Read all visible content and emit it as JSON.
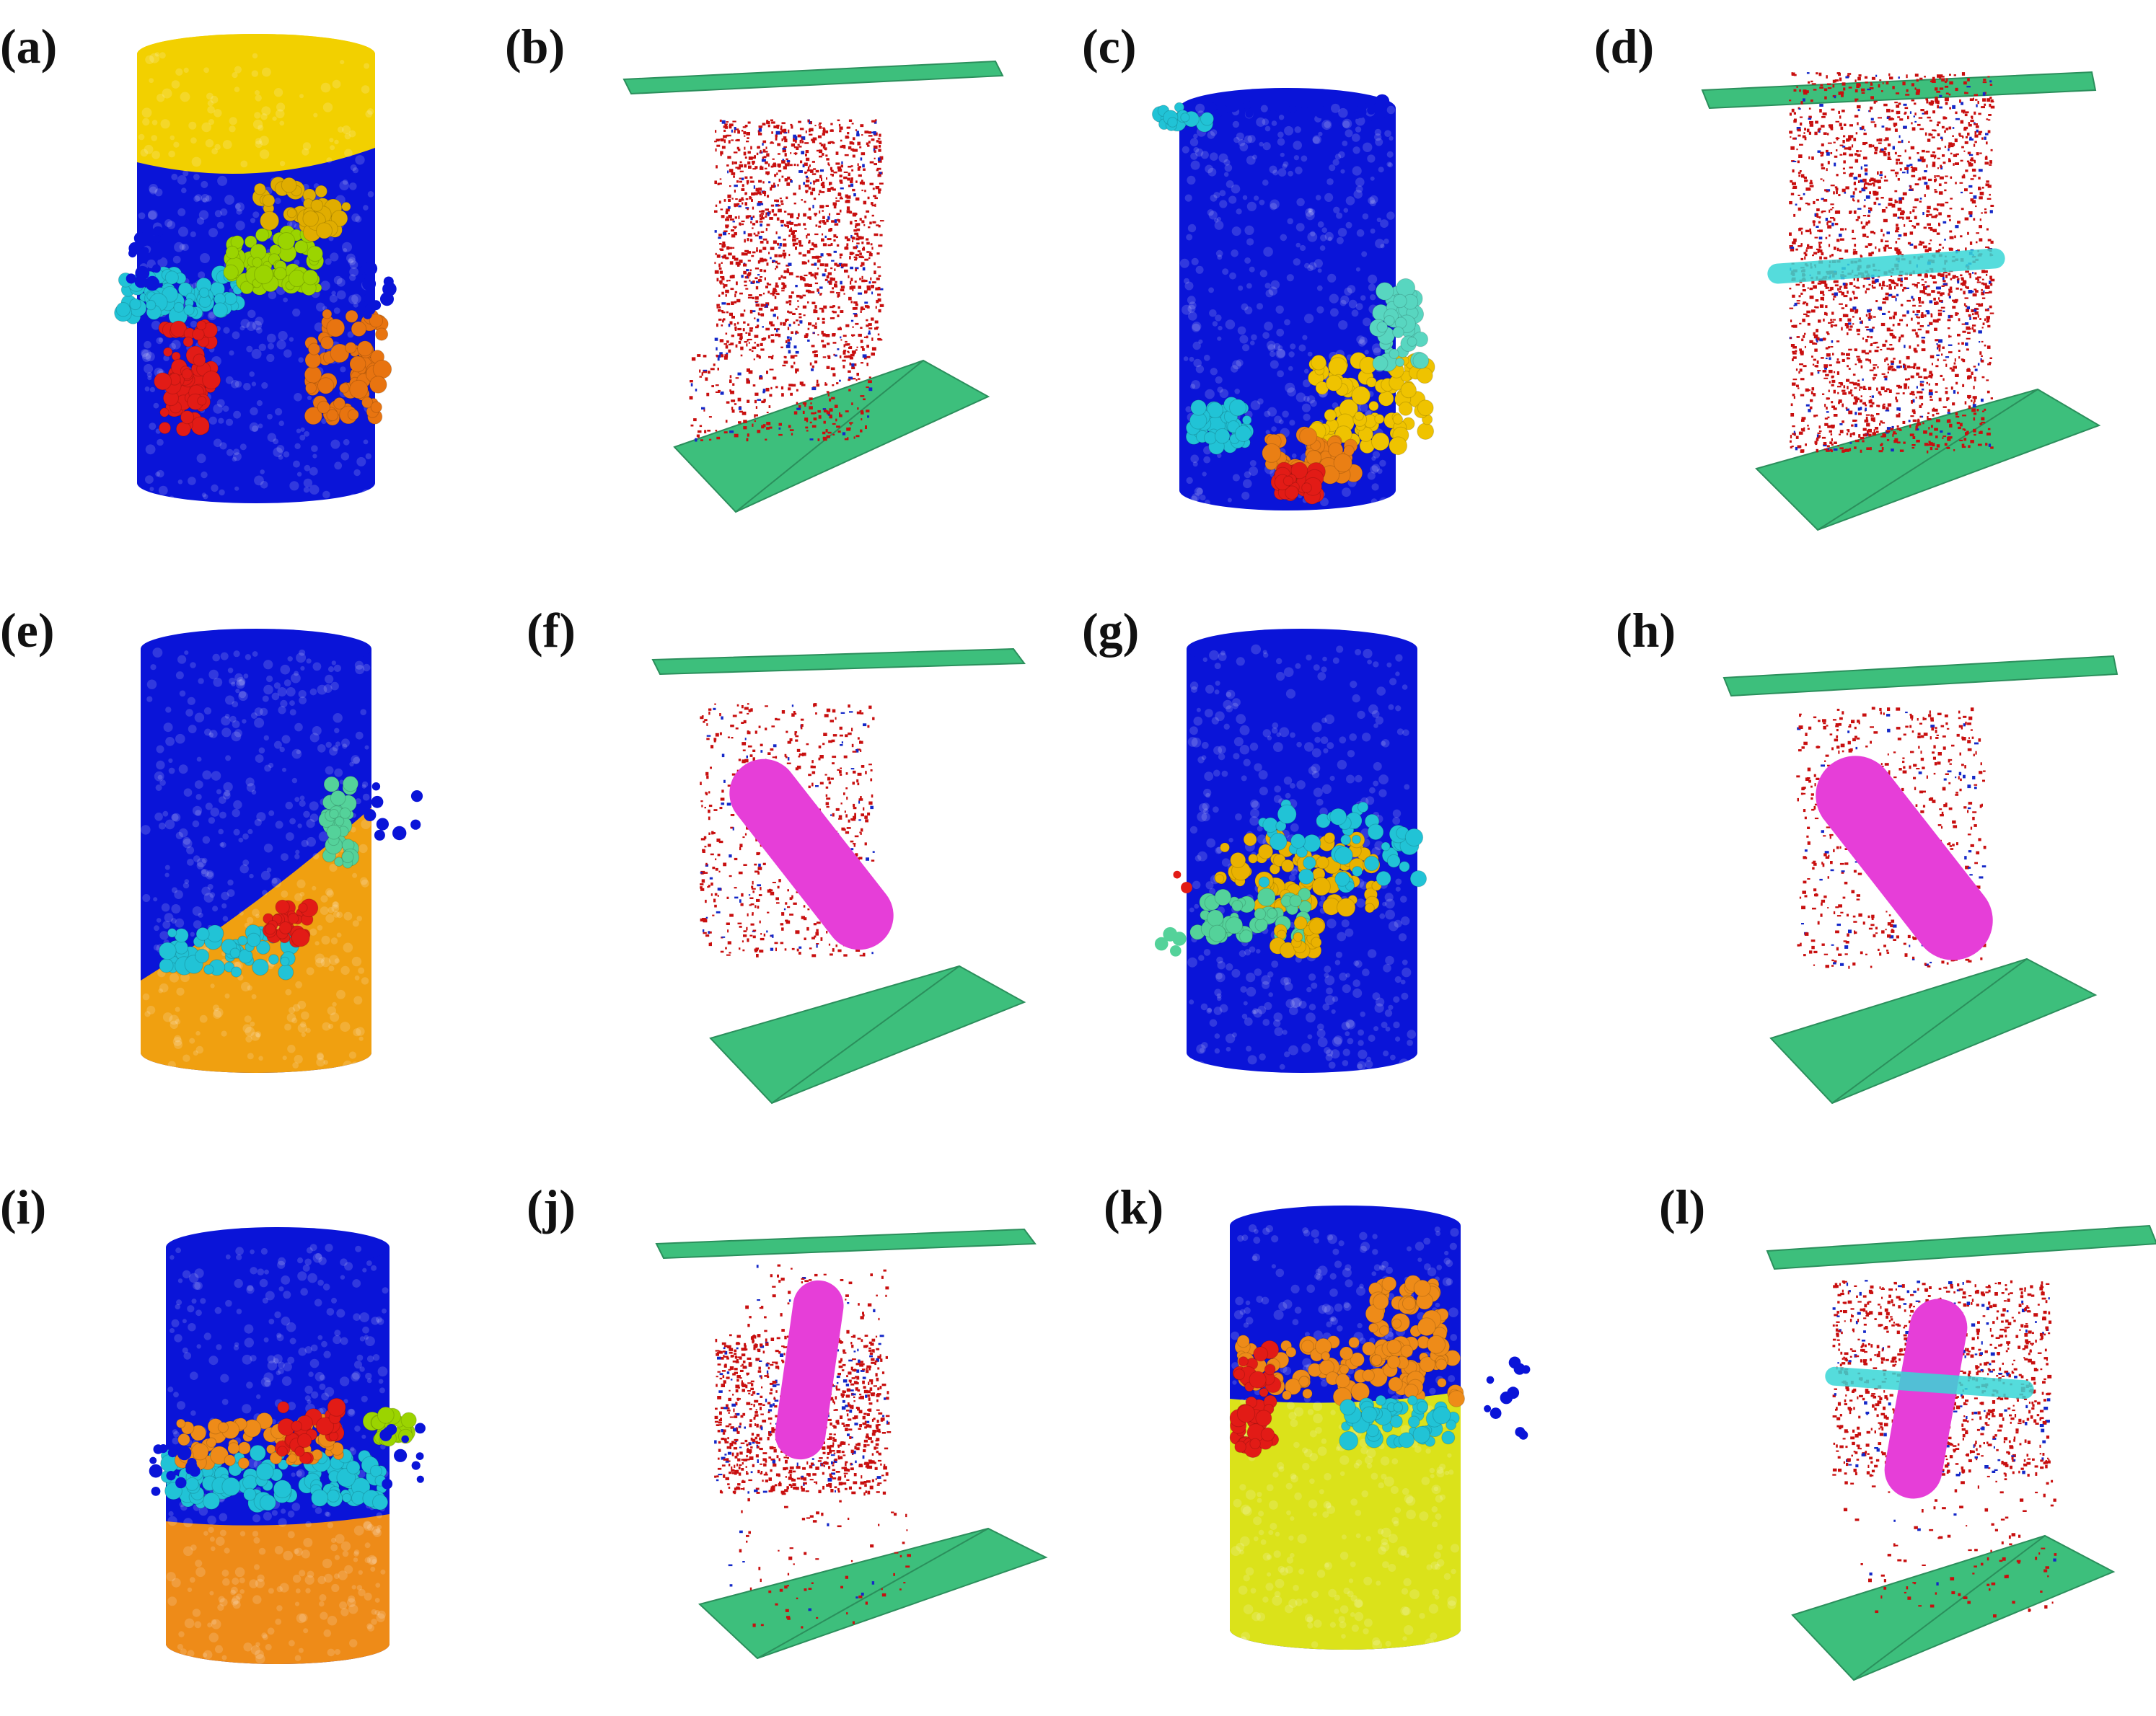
{
  "figure": {
    "panels": [
      {
        "id": "a",
        "label": "(a)",
        "kind": "specimen",
        "colors": [
          "#f2d000",
          "#e0ad00",
          "#21c3d6",
          "#9bd400",
          "#e21b16",
          "#e87410",
          "#0a14d8"
        ]
      },
      {
        "id": "b",
        "label": "(b)",
        "kind": "cracks",
        "plate_color": "#3dbf7c",
        "particle_colors": [
          "#c80f0f",
          "#1428c8"
        ]
      },
      {
        "id": "c",
        "label": "(c)",
        "kind": "specimen",
        "colors": [
          "#0a14d8",
          "#efc300",
          "#ea7f14",
          "#e21b16",
          "#21c3d6",
          "#58d6c0"
        ]
      },
      {
        "id": "d",
        "label": "(d)",
        "kind": "cracks",
        "plate_color": "#3dbf7c",
        "particle_colors": [
          "#c80f0f",
          "#1428c8"
        ],
        "bar_color": "#37d6d6"
      },
      {
        "id": "e",
        "label": "(e)",
        "kind": "specimen",
        "colors": [
          "#0a14d8",
          "#f0a010",
          "#21c3d6",
          "#e21b16",
          "#54d29a"
        ]
      },
      {
        "id": "f",
        "label": "(f)",
        "kind": "cracks",
        "plate_color": "#3dbf7c",
        "particle_colors": [
          "#c80f0f",
          "#1428c8"
        ],
        "core_color": "#e63ed8"
      },
      {
        "id": "g",
        "label": "(g)",
        "kind": "specimen",
        "colors": [
          "#0a14d8",
          "#eab200",
          "#21c3d6",
          "#54d29a",
          "#e21b16"
        ]
      },
      {
        "id": "h",
        "label": "(h)",
        "kind": "cracks",
        "plate_color": "#3dbf7c",
        "particle_colors": [
          "#c80f0f",
          "#1428c8"
        ],
        "core_color": "#e63ed8"
      },
      {
        "id": "i",
        "label": "(i)",
        "kind": "specimen",
        "colors": [
          "#0a14d8",
          "#ee8b18",
          "#21c3d6",
          "#9bd400",
          "#e21b16"
        ]
      },
      {
        "id": "j",
        "label": "(j)",
        "kind": "cracks",
        "plate_color": "#3dbf7c",
        "particle_colors": [
          "#c80f0f",
          "#1428c8"
        ],
        "core_color": "#e63ed8"
      },
      {
        "id": "k",
        "label": "(k)",
        "kind": "specimen",
        "colors": [
          "#0a14d8",
          "#dbe21a",
          "#ee8b18",
          "#21c3d6",
          "#e21b16"
        ]
      },
      {
        "id": "l",
        "label": "(l)",
        "kind": "cracks",
        "plate_color": "#3dbf7c",
        "particle_colors": [
          "#c80f0f",
          "#1428c8"
        ],
        "core_color": "#e63ed8",
        "bar_color": "#37d6d6"
      }
    ]
  }
}
